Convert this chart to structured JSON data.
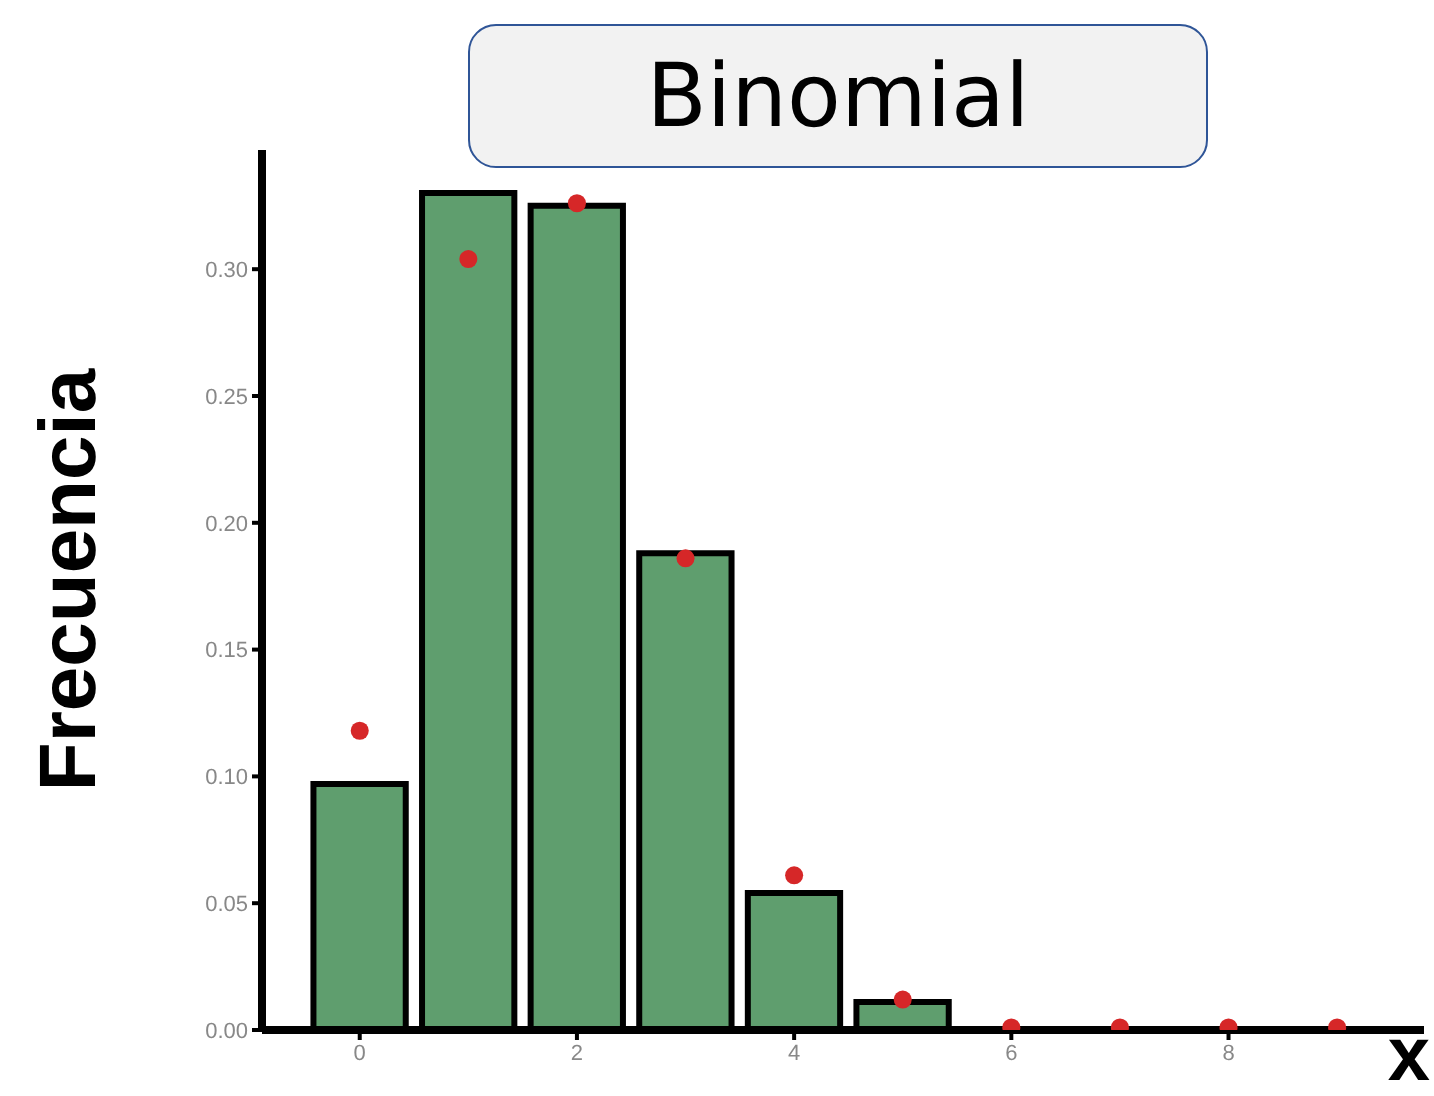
{
  "chart_data": {
    "type": "bar",
    "title": "Binomial",
    "xlabel": "x",
    "ylabel": "Frecuencia",
    "series": [
      {
        "color": "#5f9e6e",
        "x": [
          0,
          1,
          2,
          3,
          4,
          5
        ],
        "values": [
          0.097,
          0.33,
          0.325,
          0.188,
          0.054,
          0.011
        ]
      },
      {
        "type": "scatter",
        "color": "#d62728",
        "x": [
          0,
          1,
          2,
          3,
          4,
          5,
          6,
          7,
          8,
          9
        ],
        "values": [
          0.118,
          0.304,
          0.326,
          0.186,
          0.061,
          0.012,
          0.001,
          0.001,
          0.001,
          0.001
        ]
      }
    ],
    "xlim": [
      -0.9,
      9.8
    ],
    "xticks": [
      0,
      2,
      4,
      6,
      8
    ],
    "ylim": [
      0,
      0.347
    ],
    "yticks": [
      {
        "value": 0,
        "label": "0.00"
      },
      {
        "value": 0.05,
        "label": "0.05"
      },
      {
        "value": 0.1,
        "label": "0.10"
      },
      {
        "value": 0.15,
        "label": "0.15"
      },
      {
        "value": 0.2,
        "label": "0.20"
      },
      {
        "value": 0.25,
        "label": "0.25"
      },
      {
        "value": 0.3,
        "label": "0.30"
      }
    ],
    "marker": "circle",
    "grid": false
  }
}
